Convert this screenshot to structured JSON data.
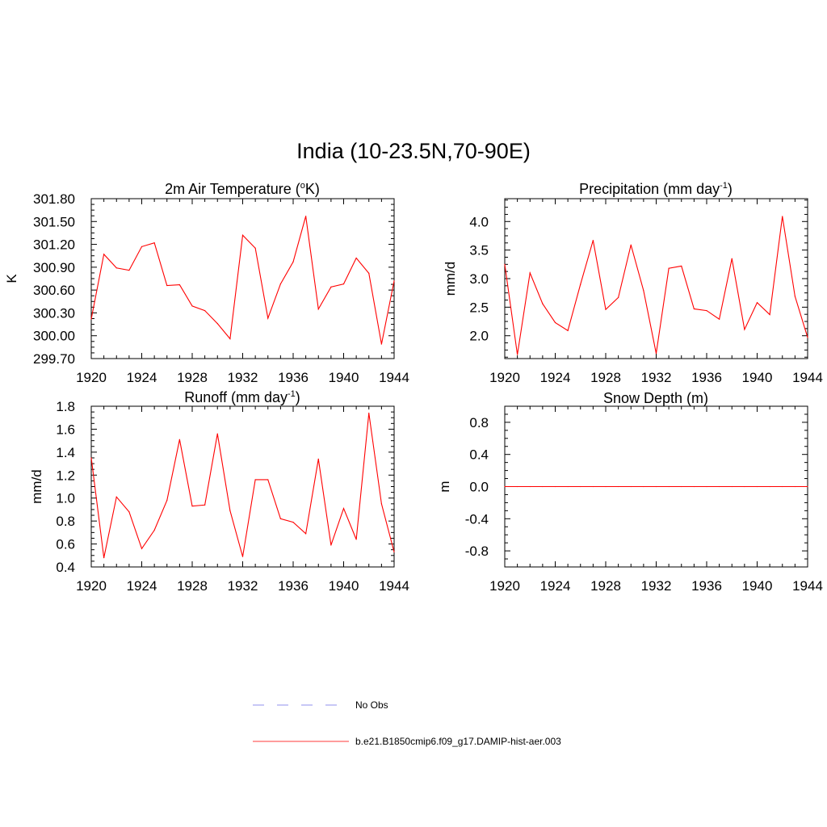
{
  "figure": {
    "title": "India (10-23.5N,70-90E)"
  },
  "legend": {
    "items": [
      {
        "label": "No Obs",
        "color": "#a8a8f0",
        "style": "dashed"
      },
      {
        "label": "b.e21.B1850cmip6.f09_g17.DAMIP-hist-aer.003",
        "color": "#ff6060",
        "style": "solid"
      }
    ]
  },
  "chart_data": [
    {
      "type": "line",
      "title_main": "2m Air Temperature (",
      "title_sup": "o",
      "title_end": "K)",
      "xlabel": "",
      "ylabel": "K",
      "xlim": [
        1920,
        1944
      ],
      "ylim": [
        299.7,
        301.8
      ],
      "xticks": [
        1920,
        1924,
        1928,
        1932,
        1936,
        1940,
        1944
      ],
      "yticks": [
        299.7,
        300.0,
        300.3,
        300.6,
        300.9,
        301.2,
        301.5,
        301.8
      ],
      "ytick_labels": [
        "299.70",
        "300.00",
        "300.30",
        "300.60",
        "300.90",
        "301.20",
        "301.50",
        "301.80"
      ],
      "series": [
        {
          "color": "#ff0000",
          "x": [
            1920,
            1921,
            1922,
            1923,
            1924,
            1925,
            1926,
            1927,
            1928,
            1929,
            1930,
            1931,
            1932,
            1933,
            1934,
            1935,
            1936,
            1937,
            1938,
            1939,
            1940,
            1941,
            1942,
            1943,
            1944
          ],
          "y": [
            300.22,
            301.07,
            300.89,
            300.86,
            301.17,
            301.22,
            300.66,
            300.67,
            300.39,
            300.33,
            300.16,
            299.96,
            301.32,
            301.15,
            300.23,
            300.68,
            300.97,
            301.57,
            300.35,
            300.64,
            300.68,
            301.02,
            300.82,
            299.89,
            300.72
          ]
        }
      ]
    },
    {
      "type": "line",
      "title_main": "Precipitation (mm day",
      "title_sup": "-1",
      "title_end": ")",
      "xlabel": "",
      "ylabel": "mm/d",
      "xlim": [
        1920,
        1944
      ],
      "ylim": [
        1.6,
        4.4
      ],
      "xticks": [
        1920,
        1924,
        1928,
        1932,
        1936,
        1940,
        1944
      ],
      "yticks": [
        2.0,
        2.5,
        3.0,
        3.5,
        4.0
      ],
      "ytick_labels": [
        "2.0",
        "2.5",
        "3.0",
        "3.5",
        "4.0"
      ],
      "series": [
        {
          "color": "#ff0000",
          "x": [
            1920,
            1921,
            1922,
            1923,
            1924,
            1925,
            1926,
            1927,
            1928,
            1929,
            1930,
            1931,
            1932,
            1933,
            1934,
            1935,
            1936,
            1937,
            1938,
            1939,
            1940,
            1941,
            1942,
            1943,
            1944
          ],
          "y": [
            3.25,
            1.67,
            3.1,
            2.56,
            2.23,
            2.09,
            2.9,
            3.67,
            2.46,
            2.67,
            3.59,
            2.79,
            1.69,
            3.18,
            3.22,
            2.47,
            2.44,
            2.29,
            3.35,
            2.11,
            2.58,
            2.37,
            4.09,
            2.69,
            1.97
          ]
        }
      ]
    },
    {
      "type": "line",
      "title_main": "Runoff (mm day",
      "title_sup": "-1",
      "title_end": ")",
      "xlabel": "",
      "ylabel": "mm/d",
      "xlim": [
        1920,
        1944
      ],
      "ylim": [
        0.4,
        1.8
      ],
      "xticks": [
        1920,
        1924,
        1928,
        1932,
        1936,
        1940,
        1944
      ],
      "yticks": [
        0.4,
        0.6,
        0.8,
        1.0,
        1.2,
        1.4,
        1.6,
        1.8
      ],
      "ytick_labels": [
        "0.4",
        "0.6",
        "0.8",
        "1.0",
        "1.2",
        "1.4",
        "1.6",
        "1.8"
      ],
      "series": [
        {
          "color": "#ff0000",
          "x": [
            1920,
            1921,
            1922,
            1923,
            1924,
            1925,
            1926,
            1927,
            1928,
            1929,
            1930,
            1931,
            1932,
            1933,
            1934,
            1935,
            1936,
            1937,
            1938,
            1939,
            1940,
            1941,
            1942,
            1943,
            1944
          ],
          "y": [
            1.35,
            0.48,
            1.01,
            0.88,
            0.56,
            0.72,
            0.98,
            1.51,
            0.93,
            0.94,
            1.56,
            0.89,
            0.49,
            1.16,
            1.16,
            0.82,
            0.79,
            0.69,
            1.34,
            0.59,
            0.91,
            0.64,
            1.74,
            0.95,
            0.53
          ]
        }
      ]
    },
    {
      "type": "line",
      "title_main": "Snow Depth (m)",
      "title_sup": "",
      "title_end": "",
      "xlabel": "",
      "ylabel": "m",
      "xlim": [
        1920,
        1944
      ],
      "ylim": [
        -1.0,
        1.0
      ],
      "xticks": [
        1920,
        1924,
        1928,
        1932,
        1936,
        1940,
        1944
      ],
      "yticks": [
        -0.8,
        -0.4,
        0.0,
        0.4,
        0.8
      ],
      "ytick_labels": [
        "-0.8",
        "-0.4",
        "0.0",
        "0.4",
        "0.8"
      ],
      "series": [
        {
          "color": "#ff0000",
          "x": [
            1920,
            1921,
            1922,
            1923,
            1924,
            1925,
            1926,
            1927,
            1928,
            1929,
            1930,
            1931,
            1932,
            1933,
            1934,
            1935,
            1936,
            1937,
            1938,
            1939,
            1940,
            1941,
            1942,
            1943,
            1944
          ],
          "y": [
            0,
            0,
            0,
            0,
            0,
            0,
            0,
            0,
            0,
            0,
            0,
            0,
            0,
            0,
            0,
            0,
            0,
            0,
            0,
            0,
            0,
            0,
            0,
            0,
            0
          ]
        }
      ]
    }
  ]
}
